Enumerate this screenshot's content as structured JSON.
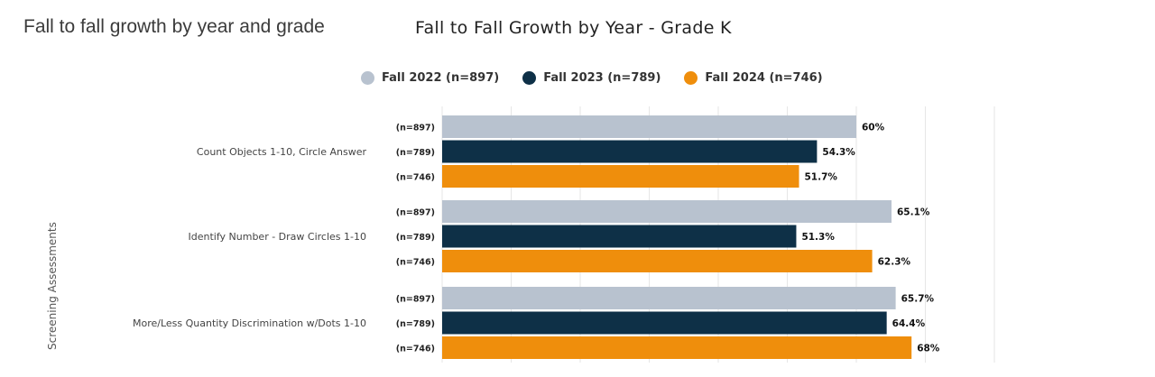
{
  "page_title": "Fall to fall growth by year and grade",
  "chart_data": {
    "type": "bar",
    "orientation": "horizontal",
    "title": "Fall to Fall Growth by Year - Grade K",
    "ylabel": "Screening Assessments",
    "xlabel": "",
    "xlim": [
      0,
      80
    ],
    "grid": true,
    "legend_position": "top",
    "categories": [
      "Count Objects 1-10, Circle Answer",
      "Identify Number - Draw Circles 1-10",
      "More/Less Quantity Discrimination w/Dots 1-10"
    ],
    "series": [
      {
        "name": "Fall 2022 (n=897)",
        "color": "#b8c2cf",
        "n_label": "(n=897)",
        "values": [
          60,
          65.1,
          65.7
        ],
        "value_labels": [
          "60%",
          "65.1%",
          "65.7%"
        ]
      },
      {
        "name": "Fall 2023 (n=789)",
        "color": "#0e3047",
        "n_label": "(n=789)",
        "values": [
          54.3,
          51.3,
          64.4
        ],
        "value_labels": [
          "54.3%",
          "51.3%",
          "64.4%"
        ]
      },
      {
        "name": "Fall 2024 (n=746)",
        "color": "#ef8e0c",
        "n_label": "(n=746)",
        "values": [
          51.7,
          62.3,
          68
        ],
        "value_labels": [
          "51.7%",
          "62.3%",
          "68%"
        ]
      }
    ]
  }
}
